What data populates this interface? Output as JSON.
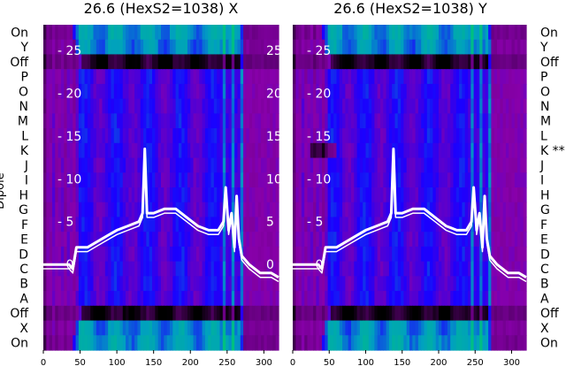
{
  "chart_data": {
    "type": "heatmap",
    "panels": [
      {
        "title": "26.6 (HexS2=1038) X",
        "row_labels": [
          "On",
          "Y",
          "Off",
          "P",
          "O",
          "N",
          "M",
          "L",
          "K",
          "J",
          "I",
          "H",
          "G",
          "F",
          "E",
          "D",
          "C",
          "B",
          "A",
          "Off",
          "X",
          "On"
        ],
        "overlay_y_ticks": [
          25,
          20,
          15,
          10,
          5,
          0
        ],
        "x_ticks": [
          0,
          50,
          100,
          150,
          200,
          250,
          300
        ],
        "xlim": [
          0,
          320
        ],
        "overlay_ylim": [
          -10,
          28
        ]
      },
      {
        "title": "26.6 (HexS2=1038) Y",
        "row_labels": [
          "On",
          "Y",
          "Off",
          "P",
          "O",
          "N",
          "M",
          "L",
          "K **",
          "J",
          "I",
          "H",
          "G",
          "F",
          "E",
          "D",
          "C",
          "B",
          "A",
          "Off",
          "X",
          "On"
        ],
        "overlay_y_ticks": [
          25,
          20,
          15,
          10,
          5,
          0
        ],
        "x_ticks": [
          0,
          50,
          100,
          150,
          200,
          250,
          300
        ],
        "xlim": [
          0,
          320
        ],
        "overlay_ylim": [
          -10,
          28
        ]
      }
    ],
    "ylabel": "Dipole",
    "colormap": [
      "#000000",
      "#5a0070",
      "#8800aa",
      "#1a00ff",
      "#00a0c0",
      "#00c080"
    ],
    "overlay_color": "#ffffff",
    "trace_points": [
      [
        0,
        0
      ],
      [
        10,
        0
      ],
      [
        20,
        0
      ],
      [
        35,
        0
      ],
      [
        40,
        -0.5
      ],
      [
        45,
        2
      ],
      [
        60,
        2
      ],
      [
        80,
        3
      ],
      [
        100,
        4
      ],
      [
        115,
        4.5
      ],
      [
        130,
        5
      ],
      [
        135,
        6
      ],
      [
        138,
        13.5
      ],
      [
        141,
        6
      ],
      [
        150,
        6
      ],
      [
        165,
        6.5
      ],
      [
        180,
        6.5
      ],
      [
        195,
        5.5
      ],
      [
        210,
        4.5
      ],
      [
        225,
        4
      ],
      [
        238,
        4
      ],
      [
        245,
        5
      ],
      [
        248,
        9
      ],
      [
        252,
        4
      ],
      [
        256,
        6
      ],
      [
        260,
        2
      ],
      [
        263,
        8
      ],
      [
        266,
        3
      ],
      [
        270,
        1
      ],
      [
        280,
        0
      ],
      [
        295,
        -1
      ],
      [
        310,
        -1
      ],
      [
        320,
        -1.5
      ]
    ]
  }
}
